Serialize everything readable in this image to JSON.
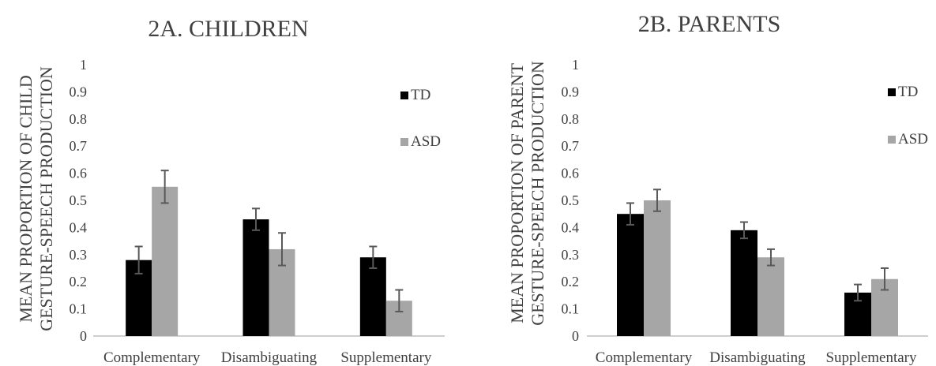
{
  "chart_data": [
    {
      "type": "bar",
      "title": "2A. CHILDREN",
      "ylabel_lines": [
        "MEAN PROPORTION OF CHILD",
        "GESTURE-SPEECH PRODUCTION"
      ],
      "xlabel": "",
      "categories": [
        "Complementary",
        "Disambiguating",
        "Supplementary"
      ],
      "ylim": [
        0,
        1
      ],
      "yticks": [
        "0",
        "0.1",
        "0.2",
        "0.3",
        "0.4",
        "0.5",
        "0.6",
        "0.7",
        "0.8",
        "0.9",
        "1"
      ],
      "grid": false,
      "legend_position": "right",
      "series": [
        {
          "name": "TD",
          "color": "#000000",
          "values": [
            0.28,
            0.43,
            0.29
          ],
          "errors": [
            0.05,
            0.04,
            0.04
          ]
        },
        {
          "name": "ASD",
          "color": "#a6a6a6",
          "values": [
            0.55,
            0.32,
            0.13
          ],
          "errors": [
            0.06,
            0.06,
            0.04
          ]
        }
      ]
    },
    {
      "type": "bar",
      "title": "2B. PARENTS",
      "ylabel_lines": [
        "MEAN PROPORTION OF PARENT",
        "GESTURE-SPEECH PRODUCTION"
      ],
      "xlabel": "",
      "categories": [
        "Complementary",
        "Disambiguating",
        "Supplementary"
      ],
      "ylim": [
        0,
        1
      ],
      "yticks": [
        "0",
        "0.1",
        "0.2",
        "0.3",
        "0.4",
        "0.5",
        "0.6",
        "0.7",
        "0.8",
        "0.9",
        "1"
      ],
      "grid": false,
      "legend_position": "right",
      "series": [
        {
          "name": "TD",
          "color": "#000000",
          "values": [
            0.45,
            0.39,
            0.16
          ],
          "errors": [
            0.04,
            0.03,
            0.03
          ]
        },
        {
          "name": "ASD",
          "color": "#a6a6a6",
          "values": [
            0.5,
            0.29,
            0.21
          ],
          "errors": [
            0.04,
            0.03,
            0.04
          ]
        }
      ]
    }
  ]
}
